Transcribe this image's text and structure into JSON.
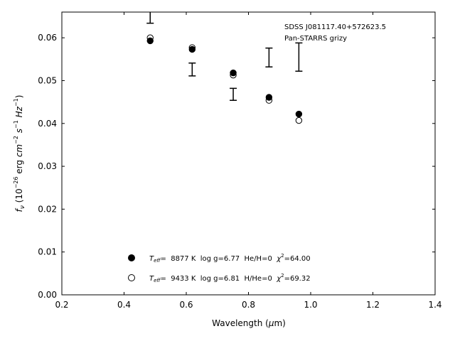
{
  "chart_data": {
    "type": "scatter",
    "annotation": [
      "SDSS J081117.40+572623.5",
      "Pan-STARRS grizy"
    ],
    "xlabel": "Wavelength (μm)",
    "ylabel": "f_ν (10^-26 erg cm^-2 s^-1 Hz^-1)",
    "xlim": [
      0.2,
      1.4
    ],
    "ylim": [
      0.0,
      0.066
    ],
    "xticks": [
      "0.2",
      "0.4",
      "0.6",
      "0.8",
      "1.0",
      "1.2",
      "1.4"
    ],
    "yticks": [
      "0.00",
      "0.01",
      "0.02",
      "0.03",
      "0.04",
      "0.05",
      "0.06"
    ],
    "grid": false,
    "legend_position": "lower-center",
    "observed": {
      "points": [
        {
          "x": 0.484,
          "y": 0.0664,
          "err": 0.003
        },
        {
          "x": 0.619,
          "y": 0.0526,
          "err": 0.0015
        },
        {
          "x": 0.751,
          "y": 0.0468,
          "err": 0.0014
        },
        {
          "x": 0.866,
          "y": 0.0554,
          "err": 0.0022
        },
        {
          "x": 0.962,
          "y": 0.0555,
          "err": 0.0033
        }
      ]
    },
    "series": [
      {
        "marker": "filled-circle",
        "label_parts": {
          "teff_sym": "T",
          "teff_sub": "eff",
          "value": "=  8877 K  log g=6.77  He/H=0  ",
          "chi_sym": "χ",
          "chi_sup": "2",
          "chi_val": "=64.00"
        },
        "x": [
          0.484,
          0.619,
          0.751,
          0.866,
          0.962
        ],
        "y": [
          0.0593,
          0.0573,
          0.0518,
          0.0461,
          0.0422
        ]
      },
      {
        "marker": "open-circle",
        "label_parts": {
          "teff_sym": "T",
          "teff_sub": "eff",
          "value": "=  9433 K  log g=6.81  H/He=0  ",
          "chi_sym": "χ",
          "chi_sup": "2",
          "chi_val": "=69.32"
        },
        "x": [
          0.484,
          0.619,
          0.751,
          0.866,
          0.962
        ],
        "y": [
          0.06,
          0.0577,
          0.0513,
          0.0454,
          0.0407
        ]
      }
    ]
  }
}
